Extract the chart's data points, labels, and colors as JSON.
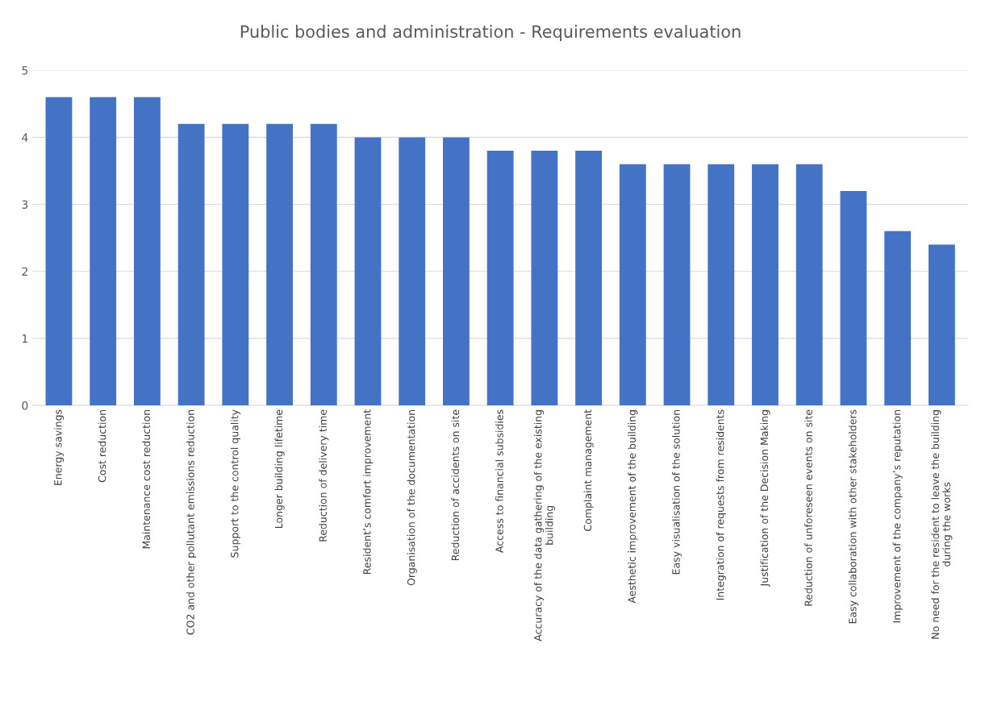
{
  "chart_data": {
    "type": "bar",
    "title": "Public bodies and administration - Requirements evaluation",
    "categories": [
      "Energy savings",
      "Cost reduction",
      "Maintenance cost reduction",
      "CO2 and other pollutant emissions reduction",
      "Support to the control quality",
      "Longer building lifetime",
      "Reduction of delivery time",
      "Resident’s comfort improvement",
      "Organisation of the documentation",
      "Reduction of accidents on site",
      "Access to financial subsidies",
      "Accuracy of the data gathering of the existing\nbuilding",
      "Complaint management",
      "Aesthetic improvement of the building",
      "Easy visualisation of the solution",
      "Integration of requests from residents",
      "Justification of the Decision Making",
      "Reduction of unforeseen events on site",
      "Easy collaboration with other stakeholders",
      "Improvement of the company’s reputation",
      "No need for the resident to leave the building\nduring the works"
    ],
    "values": [
      4.6,
      4.6,
      4.6,
      4.2,
      4.2,
      4.2,
      4.2,
      4.0,
      4.0,
      4.0,
      3.8,
      3.8,
      3.8,
      3.6,
      3.6,
      3.6,
      3.6,
      3.6,
      3.2,
      2.6,
      2.4
    ],
    "color": "#4472c4",
    "ylim": [
      0,
      5
    ],
    "yticks": [
      0,
      1,
      2,
      3,
      4,
      5
    ],
    "grid": "y"
  }
}
